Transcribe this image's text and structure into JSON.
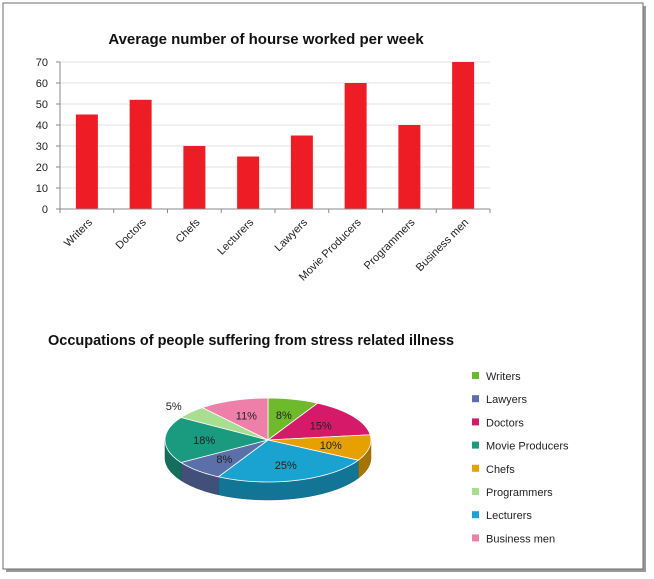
{
  "chart_data": [
    {
      "type": "bar",
      "title": "Average number of hourse worked per week",
      "categories": [
        "Writers",
        "Doctors",
        "Chefs",
        "Lecturers",
        "Lawyers",
        "Movie Producers",
        "Programmers",
        "Business men"
      ],
      "values": [
        45,
        52,
        30,
        25,
        35,
        60,
        40,
        70
      ],
      "ylim": [
        0,
        70
      ],
      "yticks": [
        "0",
        "10",
        "20",
        "30",
        "40",
        "50",
        "60",
        "70"
      ],
      "xlabel": "",
      "ylabel": "",
      "grid": true,
      "legend": "none",
      "color": "#ee1c25"
    },
    {
      "type": "pie",
      "style": "3d",
      "title": "Occupations of people suffering from stress  related illness",
      "legend": "right",
      "slices": [
        {
          "label": "Writers",
          "value": 8,
          "display": "8%",
          "color": "#6fba2c"
        },
        {
          "label": "Doctors",
          "value": 15,
          "display": "15%",
          "color": "#d61a6a"
        },
        {
          "label": "Chefs",
          "value": 10,
          "display": "10%",
          "color": "#e6a100"
        },
        {
          "label": "Lecturers",
          "value": 25,
          "display": "25%",
          "color": "#1aa3d0"
        },
        {
          "label": "Lawyers",
          "value": 8,
          "display": "8%",
          "color": "#5b6fa8"
        },
        {
          "label": "Movie Producers",
          "value": 18,
          "display": "18%",
          "color": "#1a9a7e"
        },
        {
          "label": "Programmers",
          "value": 5,
          "display": "5%",
          "color": "#a9dd8f"
        },
        {
          "label": "Business men",
          "value": 11,
          "display": "11%",
          "color": "#ee7fa8"
        }
      ],
      "legend_items": [
        {
          "label": "Writers",
          "color": "#6fba2c"
        },
        {
          "label": "Lawyers",
          "color": "#5b6fa8"
        },
        {
          "label": "Doctors",
          "color": "#d61a6a"
        },
        {
          "label": "Movie Producers",
          "color": "#1a9a7e"
        },
        {
          "label": "Chefs",
          "color": "#e6a100"
        },
        {
          "label": "Programmers",
          "color": "#a9dd8f"
        },
        {
          "label": "Lecturers",
          "color": "#1aa3d0"
        },
        {
          "label": "Business men",
          "color": "#ee7fa8"
        }
      ]
    }
  ]
}
